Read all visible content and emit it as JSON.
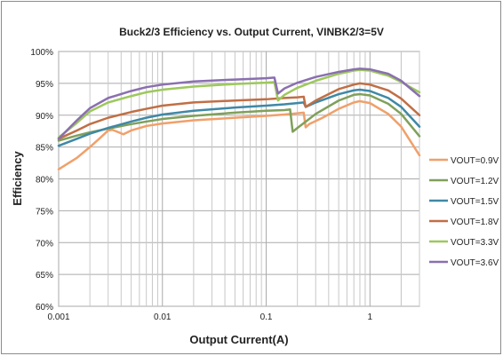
{
  "chart_data": {
    "type": "line",
    "title": "Buck2/3 Efficiency vs. Output Current, VINBK2/3=5V",
    "xlabel": "Output Current(A)",
    "ylabel": "Efficiency",
    "xscale": "log",
    "xlim": [
      0.001,
      3
    ],
    "ylim": [
      60,
      100
    ],
    "yunit": "%",
    "x_ticks": [
      {
        "value": 0.001,
        "label": "0.001"
      },
      {
        "value": 0.01,
        "label": "0.01"
      },
      {
        "value": 0.1,
        "label": "0.1"
      },
      {
        "value": 1,
        "label": "1"
      }
    ],
    "y_ticks": [
      {
        "value": 60,
        "label": "60%"
      },
      {
        "value": 65,
        "label": "65%"
      },
      {
        "value": 70,
        "label": "70%"
      },
      {
        "value": 75,
        "label": "75%"
      },
      {
        "value": 80,
        "label": "80%"
      },
      {
        "value": 85,
        "label": "85%"
      },
      {
        "value": 90,
        "label": "90%"
      },
      {
        "value": 95,
        "label": "95%"
      },
      {
        "value": 100,
        "label": "100%"
      }
    ],
    "grid": true,
    "legend_position": "right",
    "series": [
      {
        "name": "VOUT=0.9V",
        "color": "#f0a06a",
        "points": [
          [
            0.001,
            81.5
          ],
          [
            0.0015,
            83.3
          ],
          [
            0.002,
            85.0
          ],
          [
            0.0025,
            86.4
          ],
          [
            0.003,
            87.6
          ],
          [
            0.0033,
            87.7
          ],
          [
            0.0038,
            87.3
          ],
          [
            0.0042,
            87.0
          ],
          [
            0.005,
            87.6
          ],
          [
            0.007,
            88.3
          ],
          [
            0.01,
            88.7
          ],
          [
            0.02,
            89.2
          ],
          [
            0.05,
            89.6
          ],
          [
            0.1,
            89.9
          ],
          [
            0.15,
            90.1
          ],
          [
            0.2,
            90.3
          ],
          [
            0.23,
            90.4
          ],
          [
            0.24,
            88.1
          ],
          [
            0.26,
            88.6
          ],
          [
            0.35,
            89.6
          ],
          [
            0.5,
            91.0
          ],
          [
            0.7,
            92.0
          ],
          [
            0.8,
            92.2
          ],
          [
            1.0,
            91.9
          ],
          [
            1.5,
            90.2
          ],
          [
            2.0,
            88.2
          ],
          [
            3.0,
            83.7
          ]
        ]
      },
      {
        "name": "VOUT=1.2V",
        "color": "#7fa05a",
        "points": [
          [
            0.001,
            86.0
          ],
          [
            0.0015,
            86.8
          ],
          [
            0.002,
            87.3
          ],
          [
            0.003,
            87.9
          ],
          [
            0.005,
            88.6
          ],
          [
            0.007,
            89.0
          ],
          [
            0.01,
            89.4
          ],
          [
            0.02,
            89.9
          ],
          [
            0.05,
            90.4
          ],
          [
            0.1,
            90.7
          ],
          [
            0.15,
            90.8
          ],
          [
            0.17,
            90.9
          ],
          [
            0.18,
            87.4
          ],
          [
            0.2,
            88.0
          ],
          [
            0.25,
            89.2
          ],
          [
            0.3,
            90.2
          ],
          [
            0.5,
            92.3
          ],
          [
            0.7,
            93.2
          ],
          [
            0.8,
            93.3
          ],
          [
            1.0,
            93.1
          ],
          [
            1.5,
            91.8
          ],
          [
            2.0,
            90.2
          ],
          [
            3.0,
            86.7
          ]
        ]
      },
      {
        "name": "VOUT=1.5V",
        "color": "#3f88a6",
        "points": [
          [
            0.001,
            85.2
          ],
          [
            0.0015,
            86.3
          ],
          [
            0.002,
            87.1
          ],
          [
            0.003,
            88.0
          ],
          [
            0.005,
            89.0
          ],
          [
            0.007,
            89.6
          ],
          [
            0.01,
            90.1
          ],
          [
            0.02,
            90.7
          ],
          [
            0.05,
            91.2
          ],
          [
            0.1,
            91.5
          ],
          [
            0.15,
            91.7
          ],
          [
            0.2,
            91.9
          ],
          [
            0.23,
            92.0
          ],
          [
            0.24,
            91.3
          ],
          [
            0.3,
            92.0
          ],
          [
            0.5,
            93.3
          ],
          [
            0.7,
            93.9
          ],
          [
            0.8,
            94.0
          ],
          [
            1.0,
            93.8
          ],
          [
            1.5,
            92.7
          ],
          [
            2.0,
            91.3
          ],
          [
            3.0,
            88.2
          ]
        ]
      },
      {
        "name": "VOUT=1.8V",
        "color": "#c06f45",
        "points": [
          [
            0.001,
            86.3
          ],
          [
            0.0015,
            87.6
          ],
          [
            0.002,
            88.6
          ],
          [
            0.003,
            89.6
          ],
          [
            0.005,
            90.5
          ],
          [
            0.007,
            91.0
          ],
          [
            0.01,
            91.5
          ],
          [
            0.02,
            92.0
          ],
          [
            0.05,
            92.3
          ],
          [
            0.1,
            92.5
          ],
          [
            0.15,
            92.7
          ],
          [
            0.2,
            92.8
          ],
          [
            0.23,
            92.9
          ],
          [
            0.24,
            91.3
          ],
          [
            0.3,
            92.3
          ],
          [
            0.5,
            94.1
          ],
          [
            0.7,
            94.8
          ],
          [
            0.8,
            95.0
          ],
          [
            1.0,
            94.8
          ],
          [
            1.5,
            93.9
          ],
          [
            2.0,
            92.6
          ],
          [
            3.0,
            90.0
          ]
        ]
      },
      {
        "name": "VOUT=3.3V",
        "color": "#9dc85c",
        "points": [
          [
            0.001,
            86.5
          ],
          [
            0.0015,
            88.8
          ],
          [
            0.002,
            90.6
          ],
          [
            0.003,
            92.0
          ],
          [
            0.005,
            93.0
          ],
          [
            0.007,
            93.6
          ],
          [
            0.01,
            94.0
          ],
          [
            0.02,
            94.5
          ],
          [
            0.05,
            94.9
          ],
          [
            0.1,
            95.1
          ],
          [
            0.12,
            95.2
          ],
          [
            0.13,
            92.3
          ],
          [
            0.15,
            93.2
          ],
          [
            0.2,
            94.3
          ],
          [
            0.3,
            95.4
          ],
          [
            0.5,
            96.5
          ],
          [
            0.7,
            97.0
          ],
          [
            0.8,
            97.1
          ],
          [
            1.0,
            97.0
          ],
          [
            1.5,
            96.2
          ],
          [
            2.0,
            95.2
          ],
          [
            3.0,
            93.6
          ]
        ]
      },
      {
        "name": "VOUT=3.6V",
        "color": "#8a6fb0",
        "points": [
          [
            0.001,
            86.3
          ],
          [
            0.0015,
            89.2
          ],
          [
            0.002,
            91.1
          ],
          [
            0.003,
            92.7
          ],
          [
            0.005,
            93.8
          ],
          [
            0.007,
            94.4
          ],
          [
            0.01,
            94.8
          ],
          [
            0.02,
            95.3
          ],
          [
            0.05,
            95.6
          ],
          [
            0.1,
            95.8
          ],
          [
            0.12,
            95.9
          ],
          [
            0.13,
            93.4
          ],
          [
            0.15,
            94.2
          ],
          [
            0.2,
            95.1
          ],
          [
            0.3,
            96.0
          ],
          [
            0.5,
            96.8
          ],
          [
            0.7,
            97.2
          ],
          [
            0.8,
            97.3
          ],
          [
            1.0,
            97.2
          ],
          [
            1.5,
            96.5
          ],
          [
            2.0,
            95.4
          ],
          [
            3.0,
            93.0
          ]
        ]
      }
    ]
  }
}
